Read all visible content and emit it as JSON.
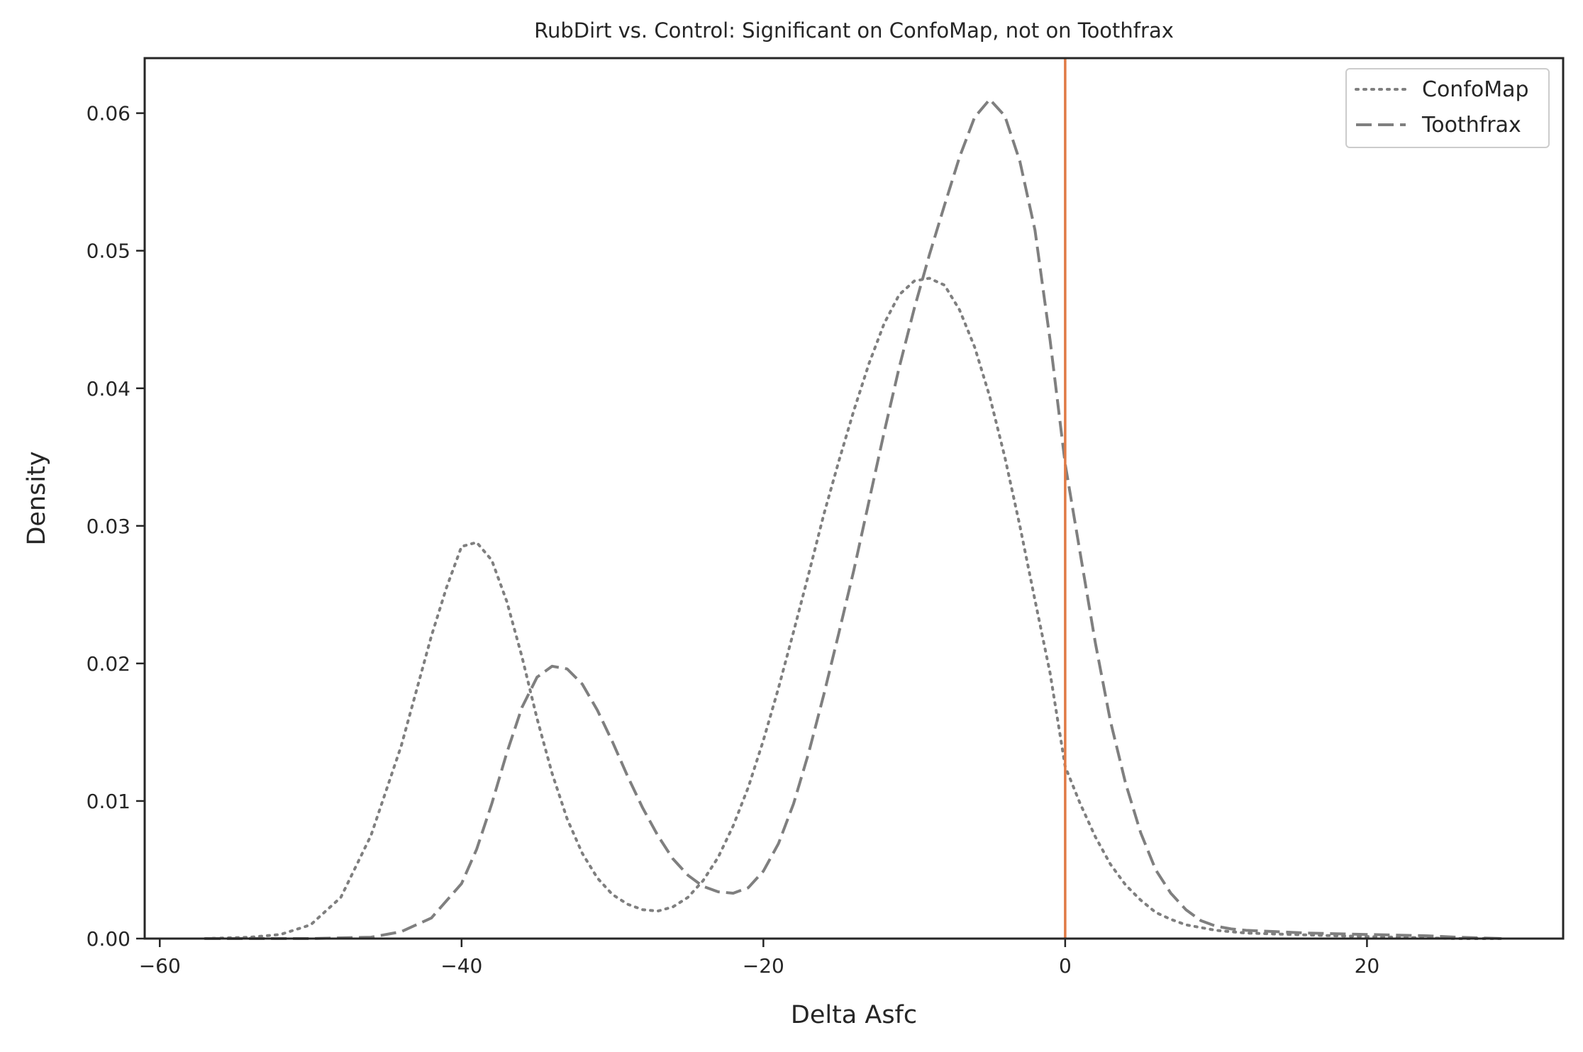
{
  "chart_data": {
    "type": "line",
    "title": "RubDirt vs. Control: Significant on ConfoMap, not on Toothfrax",
    "xlabel": "Delta Asfc",
    "ylabel": "Density",
    "xlim": [
      -61,
      33
    ],
    "ylim": [
      0,
      0.064
    ],
    "xticks": [
      -60,
      -40,
      -20,
      0,
      20
    ],
    "xtick_labels": [
      "−60",
      "−40",
      "−20",
      "0",
      "20"
    ],
    "yticks": [
      0,
      0.01,
      0.02,
      0.03,
      0.04,
      0.05,
      0.06
    ],
    "ytick_labels": [
      "0.00",
      "0.01",
      "0.02",
      "0.03",
      "0.04",
      "0.05",
      "0.06"
    ],
    "grid": false,
    "legend": "top-right",
    "reference_line": {
      "x": 0,
      "color": "#e07a45"
    },
    "series": [
      {
        "name": "ConfoMap",
        "style": "dotted",
        "color": "#7f7f7f",
        "x": [
          -57,
          -54,
          -52,
          -50,
          -48,
          -46,
          -44,
          -42,
          -41,
          -40,
          -39,
          -38,
          -37,
          -36,
          -35,
          -34,
          -33,
          -32,
          -31,
          -30,
          -29,
          -28,
          -27,
          -26,
          -25,
          -24,
          -23,
          -22,
          -21,
          -20,
          -19,
          -18,
          -17,
          -16,
          -15,
          -14,
          -13,
          -12,
          -11,
          -10,
          -9,
          -8,
          -7,
          -6,
          -5,
          -4,
          -3,
          -2,
          -1,
          0,
          1,
          2,
          3,
          4,
          5,
          6,
          7,
          8,
          9,
          10,
          12,
          15,
          18,
          22,
          26,
          29
        ],
        "y": [
          0.0,
          0.0001,
          0.0003,
          0.001,
          0.003,
          0.0075,
          0.014,
          0.022,
          0.0255,
          0.0285,
          0.0288,
          0.0275,
          0.0245,
          0.0205,
          0.016,
          0.012,
          0.0087,
          0.0062,
          0.0044,
          0.0032,
          0.0025,
          0.0021,
          0.002,
          0.0023,
          0.003,
          0.0042,
          0.0059,
          0.0082,
          0.011,
          0.0144,
          0.0182,
          0.0223,
          0.0265,
          0.0308,
          0.0347,
          0.0384,
          0.0418,
          0.0447,
          0.0468,
          0.0478,
          0.048,
          0.0475,
          0.0457,
          0.043,
          0.0394,
          0.035,
          0.03,
          0.0246,
          0.0193,
          0.0125,
          0.0098,
          0.0074,
          0.0054,
          0.0039,
          0.0028,
          0.0019,
          0.0014,
          0.001,
          0.0008,
          0.0006,
          0.0004,
          0.0003,
          0.0002,
          0.0001,
          0.0,
          0.0
        ]
      },
      {
        "name": "Toothfrax",
        "style": "dashed",
        "color": "#7f7f7f",
        "x": [
          -57,
          -50,
          -46,
          -44,
          -42,
          -40,
          -39,
          -38,
          -37,
          -36,
          -35,
          -34,
          -33,
          -32,
          -31,
          -30,
          -29,
          -28,
          -27,
          -26,
          -25,
          -24,
          -23,
          -22,
          -21,
          -20,
          -19,
          -18,
          -17,
          -16,
          -15,
          -14,
          -13,
          -12,
          -11,
          -10,
          -9,
          -8,
          -7,
          -6,
          -5,
          -4,
          -3,
          -2,
          -1,
          0,
          1,
          2,
          3,
          4,
          5,
          6,
          7,
          8,
          9,
          10,
          11,
          12,
          14,
          16,
          18,
          20,
          22,
          24,
          26,
          29
        ],
        "y": [
          0.0,
          0.0,
          0.0001,
          0.0005,
          0.0015,
          0.004,
          0.0065,
          0.0098,
          0.0135,
          0.0168,
          0.019,
          0.0198,
          0.0196,
          0.0185,
          0.0166,
          0.0143,
          0.0118,
          0.0095,
          0.0075,
          0.0058,
          0.0046,
          0.0038,
          0.0034,
          0.0033,
          0.0037,
          0.0049,
          0.0069,
          0.0098,
          0.0135,
          0.0177,
          0.0222,
          0.0268,
          0.0318,
          0.0368,
          0.0415,
          0.0458,
          0.0497,
          0.0533,
          0.0568,
          0.0597,
          0.061,
          0.0598,
          0.0565,
          0.0515,
          0.0435,
          0.0345,
          0.028,
          0.0215,
          0.0158,
          0.0113,
          0.0077,
          0.005,
          0.0033,
          0.0021,
          0.0013,
          0.0009,
          0.0007,
          0.0006,
          0.0005,
          0.0004,
          0.00035,
          0.0003,
          0.00025,
          0.0002,
          0.0001,
          0.0
        ]
      }
    ]
  }
}
